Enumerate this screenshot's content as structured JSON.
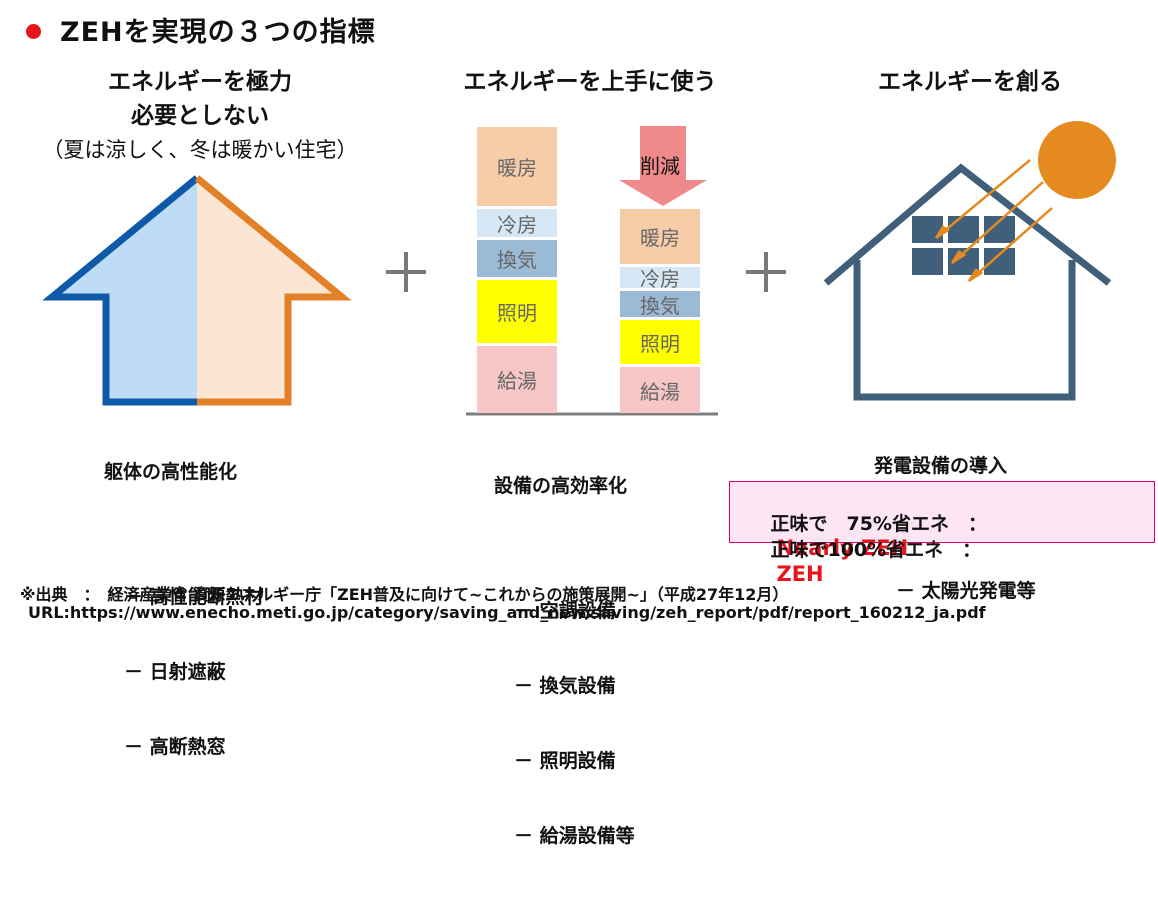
{
  "title": "ZEHを実現の３つの指標",
  "colors": {
    "bullet": "#e8141b",
    "reduce_arrow": "#f08a8a",
    "heating": "#f7cda8",
    "cooling": "#d6e8f5",
    "ventilation": "#9bbad6",
    "lighting": "#ffff00",
    "hot_water": "#f7c6c6",
    "sun": "#e58a1f",
    "panel": "#405f7a"
  },
  "col1": {
    "heading_line1": "エネルギーを極力",
    "heading_line2": "必要としない",
    "subheading": "（夏は涼しく、冬は暖かい住宅）",
    "list_title": "躯体の高性能化",
    "items": [
      "－ 高性能断熱材",
      "－ 日射遮蔽",
      "－ 高断熱窓"
    ]
  },
  "plus": "＋",
  "col2": {
    "heading": "エネルギーを上手に使う",
    "reduce_label": "削減",
    "left_bar": [
      "暖房",
      "冷房",
      "換気",
      "照明",
      "給湯"
    ],
    "right_bar": [
      "暖房",
      "冷房",
      "換気",
      "照明",
      "給湯"
    ],
    "list_title": "設備の高効率化",
    "items": [
      "－ 空調設備",
      "－ 換気設備",
      "－ 照明設備",
      "－ 給湯設備等"
    ]
  },
  "col3": {
    "heading": "エネルギーを創る",
    "list_title": "発電設備の導入",
    "items": [
      "－ 太陽光発電等"
    ]
  },
  "zeh_box": {
    "row1_label": "正味で　75%省エネ　：",
    "row1_value": "Nearly ZEH",
    "row2_label": "正味で100%省エネ　：",
    "row2_value": "ZEH"
  },
  "footer": {
    "source": "※出典　：　経済産業省 資源エネルギー庁「ZEH普及に向けて~これからの施策展開~」（平成27年12月）",
    "url": "URL:https://www.enecho.meti.go.jp/category/saving_and_new/saving/zeh_report/pdf/report_160212_ja.pdf"
  }
}
